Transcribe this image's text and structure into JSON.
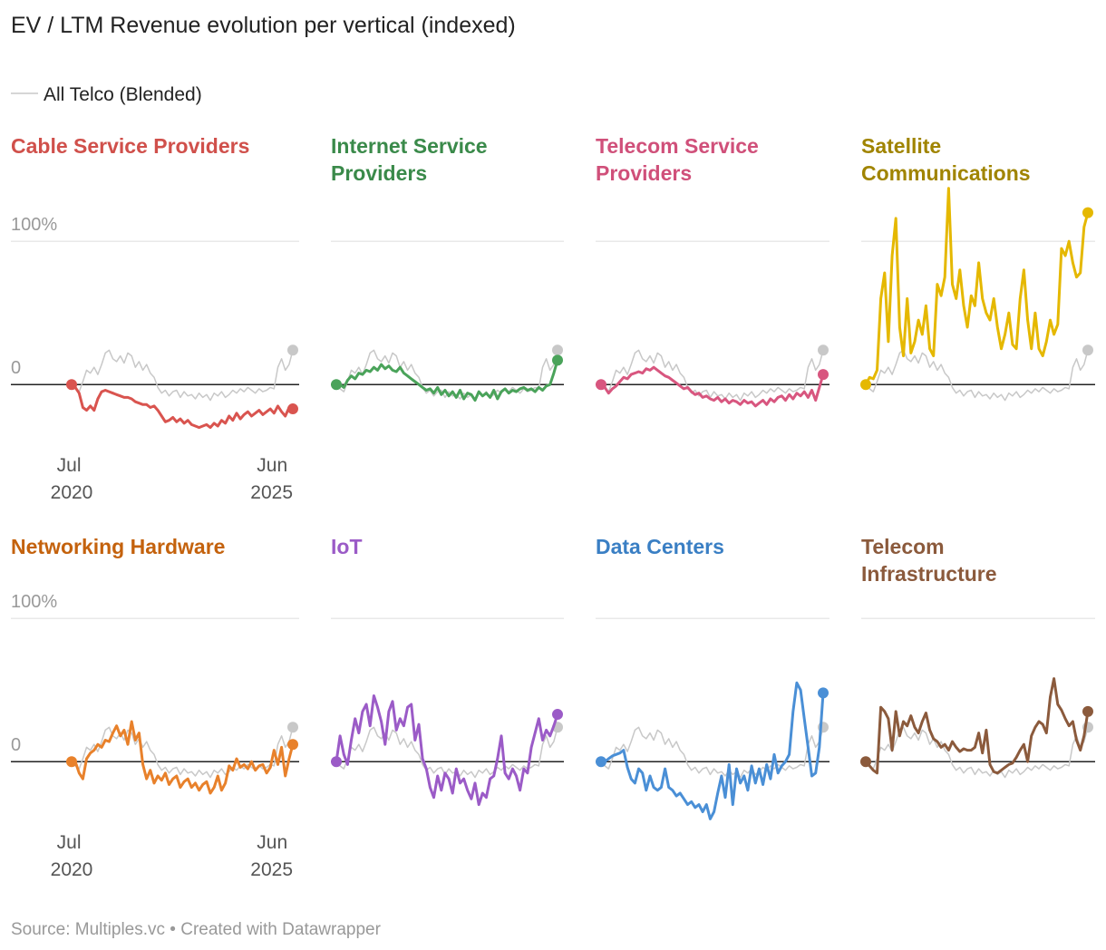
{
  "chart_data": {
    "type": "line",
    "title": "EV / LTM Revenue evolution per vertical (indexed)",
    "source": "Source: Multiples.vc • Created with Datawrapper",
    "x": [
      "2020-07",
      "2020-08",
      "2020-09",
      "2020-10",
      "2020-11",
      "2020-12",
      "2021-01",
      "2021-02",
      "2021-03",
      "2021-04",
      "2021-05",
      "2021-06",
      "2021-07",
      "2021-08",
      "2021-09",
      "2021-10",
      "2021-11",
      "2021-12",
      "2022-01",
      "2022-02",
      "2022-03",
      "2022-04",
      "2022-05",
      "2022-06",
      "2022-07",
      "2022-08",
      "2022-09",
      "2022-10",
      "2022-11",
      "2022-12",
      "2023-01",
      "2023-02",
      "2023-03",
      "2023-04",
      "2023-05",
      "2023-06",
      "2023-07",
      "2023-08",
      "2023-09",
      "2023-10",
      "2023-11",
      "2023-12",
      "2024-01",
      "2024-02",
      "2024-03",
      "2024-04",
      "2024-05",
      "2024-06",
      "2024-07",
      "2024-08",
      "2024-09",
      "2024-10",
      "2024-11",
      "2024-12",
      "2025-01",
      "2025-02",
      "2025-03",
      "2025-04",
      "2025-05",
      "2025-06"
    ],
    "xlim": [
      "2020-07",
      "2025-06"
    ],
    "xticks": [
      {
        "value": "2020-07",
        "label": "Jul 2020"
      },
      {
        "value": "2025-06",
        "label": "Jun 2025"
      }
    ],
    "ylim": [
      -50,
      140
    ],
    "yticks": [
      0,
      {
        "value": 100,
        "label": "100%"
      }
    ],
    "reference": {
      "name": "All Telco (Blended)",
      "color": "#c8c8c8",
      "values": [
        0,
        -3,
        -5,
        2,
        10,
        8,
        12,
        7,
        14,
        22,
        24,
        18,
        16,
        20,
        15,
        22,
        20,
        12,
        16,
        10,
        14,
        8,
        5,
        -2,
        -6,
        -4,
        -8,
        -5,
        -4,
        -9,
        -5,
        -8,
        -7,
        -10,
        -6,
        -9,
        -7,
        -11,
        -6,
        -8,
        -5,
        -9,
        -7,
        -4,
        -6,
        -3,
        -5,
        -2,
        -4,
        -6,
        -3,
        -5,
        -4,
        -2,
        -3,
        12,
        18,
        10,
        14,
        24
      ]
    },
    "series": [
      {
        "name": "Cable Service Providers",
        "color": "#d9544f",
        "title_color": "#d0504b",
        "values": [
          0,
          -2,
          -6,
          -16,
          -18,
          -15,
          -18,
          -10,
          -5,
          -4,
          -5,
          -6,
          -7,
          -8,
          -9,
          -9,
          -10,
          -12,
          -13,
          -14,
          -14,
          -16,
          -15,
          -18,
          -22,
          -26,
          -25,
          -23,
          -26,
          -24,
          -27,
          -25,
          -28,
          -29,
          -30,
          -29,
          -28,
          -30,
          -27,
          -29,
          -25,
          -27,
          -22,
          -25,
          -20,
          -24,
          -21,
          -19,
          -22,
          -20,
          -18,
          -21,
          -19,
          -17,
          -20,
          -15,
          -19,
          -22,
          -16,
          -17
        ]
      },
      {
        "name": "Internet Service Providers",
        "color": "#4aa35a",
        "title_color": "#3a8a4a",
        "values": [
          0,
          0,
          -2,
          3,
          6,
          4,
          8,
          7,
          10,
          9,
          12,
          10,
          14,
          11,
          13,
          10,
          9,
          12,
          8,
          6,
          4,
          2,
          0,
          -2,
          -4,
          -3,
          -6,
          -2,
          -7,
          -4,
          -8,
          -5,
          -9,
          -4,
          -10,
          -6,
          -7,
          -11,
          -5,
          -8,
          -6,
          -9,
          -4,
          -10,
          -5,
          -3,
          -6,
          -4,
          -5,
          -3,
          -2,
          -4,
          -3,
          -5,
          -2,
          -4,
          -1,
          0,
          8,
          17
        ]
      },
      {
        "name": "Telecom Service Providers",
        "color": "#d8567f",
        "title_color": "#d0507a",
        "values": [
          0,
          -2,
          -6,
          -3,
          -1,
          2,
          5,
          4,
          7,
          8,
          9,
          8,
          11,
          10,
          12,
          10,
          8,
          6,
          5,
          3,
          1,
          -1,
          -3,
          -2,
          -5,
          -7,
          -6,
          -9,
          -8,
          -10,
          -11,
          -9,
          -12,
          -10,
          -13,
          -11,
          -12,
          -14,
          -11,
          -13,
          -12,
          -15,
          -13,
          -11,
          -14,
          -10,
          -12,
          -9,
          -8,
          -11,
          -7,
          -10,
          -6,
          -8,
          -5,
          -9,
          -4,
          -11,
          -2,
          7
        ]
      },
      {
        "name": "Satellite Communications",
        "color": "#e5b800",
        "title_color": "#a08400",
        "values": [
          0,
          5,
          4,
          10,
          60,
          78,
          30,
          90,
          116,
          40,
          20,
          60,
          22,
          30,
          45,
          35,
          55,
          25,
          20,
          70,
          62,
          75,
          137,
          70,
          60,
          80,
          55,
          40,
          62,
          55,
          85,
          60,
          50,
          45,
          60,
          40,
          25,
          35,
          50,
          28,
          25,
          60,
          80,
          45,
          25,
          50,
          25,
          20,
          30,
          45,
          35,
          42,
          95,
          90,
          100,
          85,
          75,
          78,
          110,
          120
        ]
      },
      {
        "name": "Networking Hardware",
        "color": "#e8812b",
        "title_color": "#c4620d",
        "values": [
          0,
          0,
          -8,
          -12,
          2,
          6,
          8,
          12,
          10,
          15,
          14,
          20,
          25,
          18,
          22,
          12,
          28,
          15,
          20,
          -2,
          -12,
          -6,
          -15,
          -10,
          -13,
          -8,
          -16,
          -12,
          -10,
          -18,
          -14,
          -12,
          -18,
          -15,
          -20,
          -16,
          -14,
          -22,
          -18,
          -10,
          -20,
          -15,
          -3,
          -6,
          2,
          -4,
          -2,
          -5,
          0,
          -6,
          -3,
          -2,
          -8,
          -4,
          8,
          -2,
          10,
          -10,
          2,
          12
        ]
      },
      {
        "name": "IoT",
        "color": "#9b5bc7",
        "title_color": "#9b5bc7",
        "values": [
          0,
          18,
          5,
          -2,
          15,
          30,
          20,
          35,
          40,
          25,
          46,
          38,
          28,
          12,
          35,
          42,
          22,
          30,
          25,
          38,
          40,
          15,
          26,
          2,
          -5,
          -18,
          -25,
          -10,
          -20,
          -8,
          -12,
          -22,
          -5,
          -15,
          -12,
          -20,
          -26,
          -15,
          -30,
          -22,
          -25,
          -12,
          -10,
          2,
          18,
          -8,
          -12,
          -5,
          -10,
          -20,
          -5,
          -8,
          10,
          20,
          30,
          15,
          22,
          18,
          25,
          33
        ]
      },
      {
        "name": "Data Centers",
        "color": "#4a8fd6",
        "title_color": "#3a7fc4",
        "values": [
          0,
          0,
          2,
          4,
          5,
          6,
          8,
          -4,
          -12,
          -15,
          -5,
          -8,
          -20,
          -10,
          -18,
          -20,
          -18,
          -5,
          -18,
          -20,
          -24,
          -22,
          -26,
          -30,
          -28,
          -32,
          -30,
          -35,
          -30,
          -40,
          -35,
          -22,
          -10,
          -25,
          -2,
          -30,
          -5,
          -15,
          -10,
          -20,
          -3,
          -15,
          -5,
          -16,
          -2,
          -12,
          5,
          -8,
          -3,
          0,
          5,
          35,
          55,
          50,
          30,
          10,
          -10,
          -8,
          10,
          48
        ]
      },
      {
        "name": "Telecom Infrastructure",
        "color": "#8b5a3c",
        "title_color": "#8b5a3c",
        "values": [
          0,
          -3,
          -6,
          -8,
          38,
          35,
          30,
          8,
          35,
          18,
          28,
          25,
          32,
          24,
          20,
          28,
          34,
          22,
          16,
          14,
          10,
          12,
          8,
          14,
          10,
          7,
          9,
          8,
          8,
          10,
          20,
          6,
          22,
          -2,
          -7,
          -8,
          -6,
          -4,
          -2,
          -1,
          3,
          8,
          12,
          0,
          18,
          24,
          28,
          26,
          20,
          45,
          58,
          40,
          36,
          30,
          25,
          28,
          15,
          8,
          18,
          35
        ]
      }
    ]
  }
}
